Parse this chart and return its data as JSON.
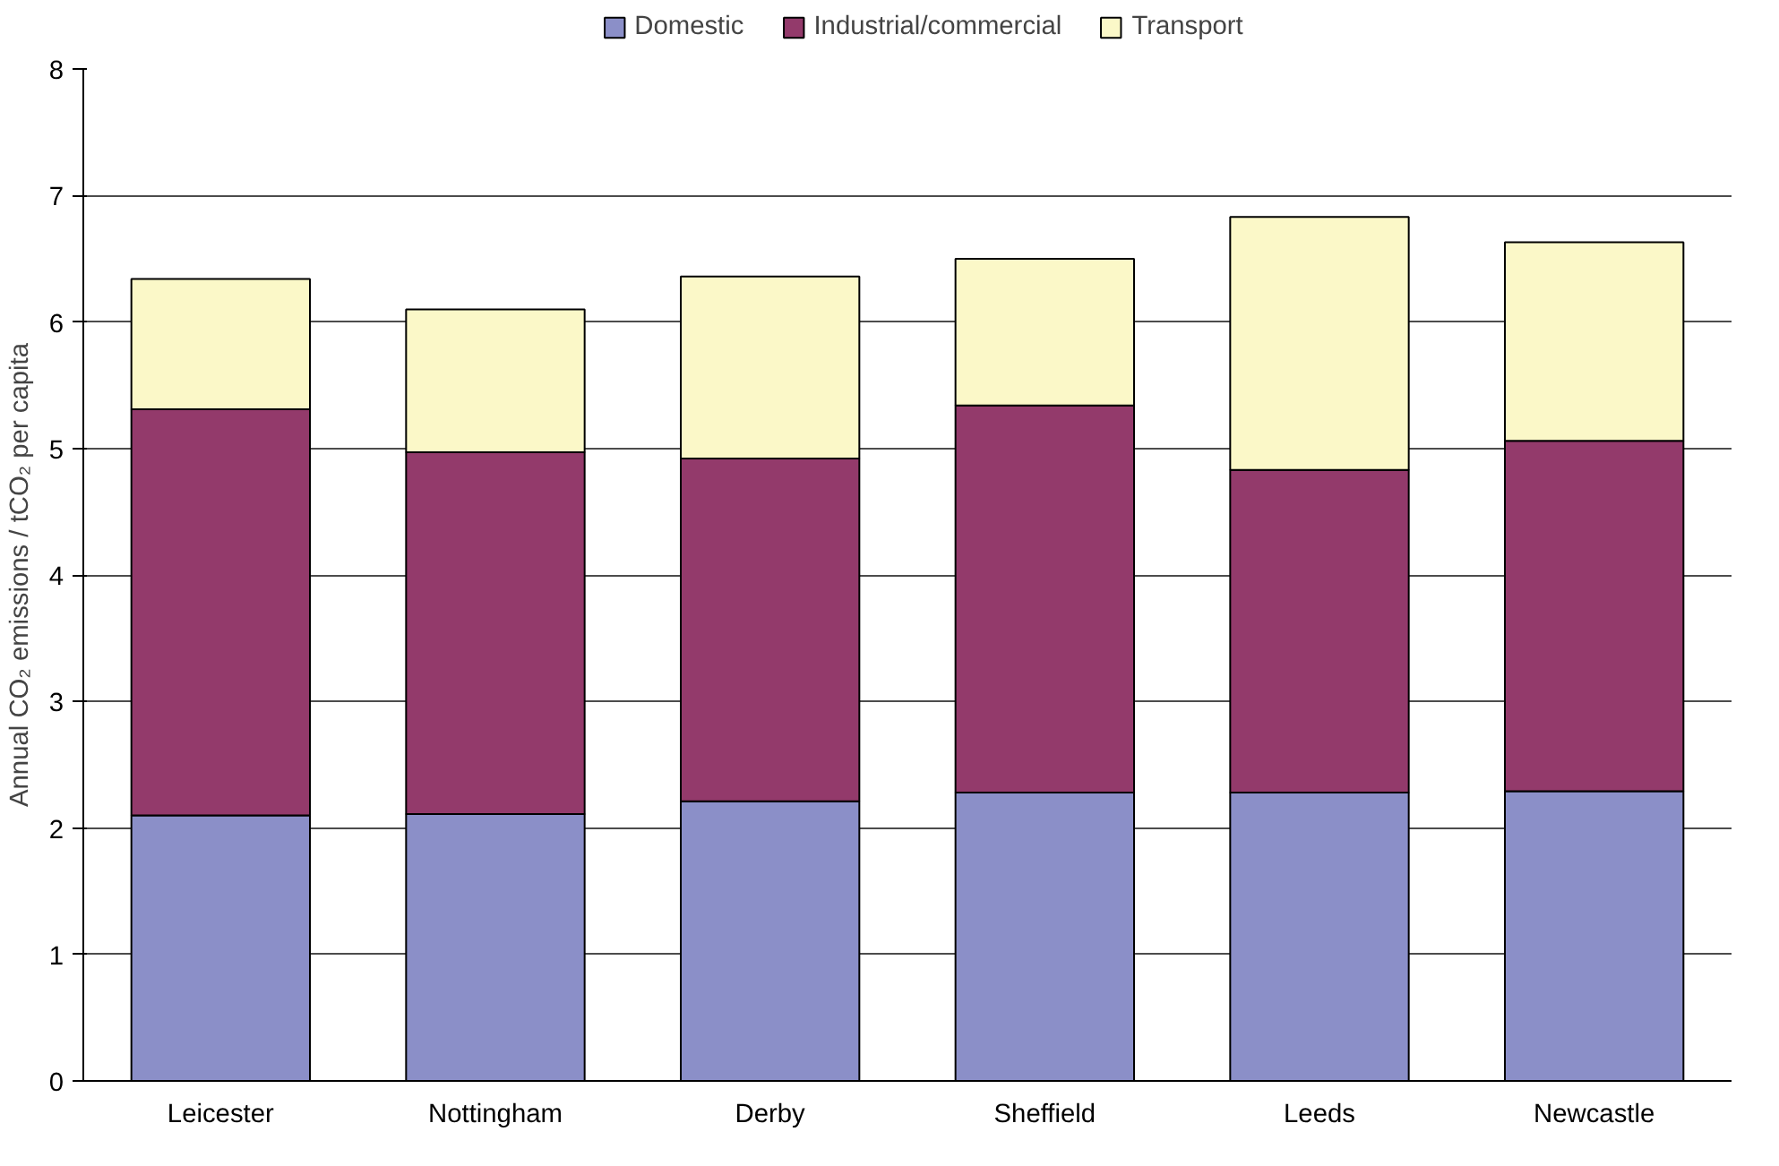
{
  "chart_data": {
    "type": "bar",
    "stacked": true,
    "ylabel": "Annual CO₂ emissions / tCO₂ per capita",
    "categories": [
      "Leicester",
      "Nottingham",
      "Derby",
      "Sheffield",
      "Leeds",
      "Newcastle"
    ],
    "series": [
      {
        "name": "Domestic",
        "color": "#8b8fc8",
        "values": [
          2.1,
          2.11,
          2.21,
          2.28,
          2.28,
          2.29
        ]
      },
      {
        "name": "Industrial/commercial",
        "color": "#933a6b",
        "values": [
          3.21,
          2.86,
          2.71,
          3.06,
          2.55,
          2.77
        ]
      },
      {
        "name": "Transport",
        "color": "#fbf8c8",
        "values": [
          1.03,
          1.13,
          1.44,
          1.16,
          2.0,
          1.57
        ]
      }
    ],
    "ylim": [
      0,
      8
    ],
    "yticks": [
      0,
      1,
      2,
      3,
      4,
      5,
      6,
      7,
      8
    ],
    "grid": "y",
    "legend": "top"
  }
}
